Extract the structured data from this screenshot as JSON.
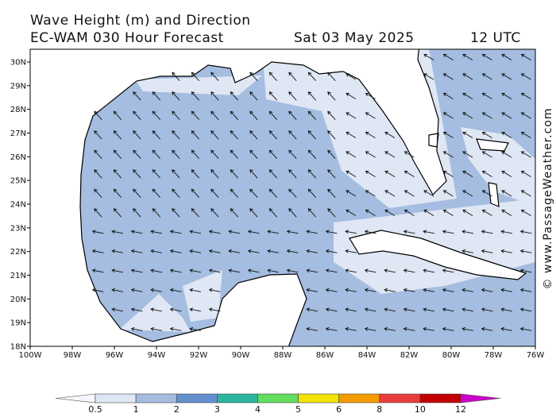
{
  "header": {
    "title": "Wave Height (m) and Direction",
    "subtitle": "EC-WAM 030 Hour Forecast",
    "date": "Sat 03 May 2025",
    "time": "12 UTC"
  },
  "map": {
    "lat_labels": [
      "30N",
      "29N",
      "28N",
      "27N",
      "26N",
      "25N",
      "24N",
      "23N",
      "22N",
      "21N",
      "20N",
      "19N",
      "18N"
    ],
    "lon_labels": [
      "100W",
      "98W",
      "96W",
      "94W",
      "92W",
      "90W",
      "88W",
      "86W",
      "84W",
      "82W",
      "80W",
      "78W",
      "76W"
    ]
  },
  "colorbar": {
    "labels": [
      "0.5",
      "1",
      "2",
      "3",
      "4",
      "5",
      "6",
      "8",
      "10",
      "12"
    ],
    "colors": [
      "#f4f6fb",
      "#dfe6f4",
      "#a4bde0",
      "#6490cf",
      "#2db5a0",
      "#63dd5e",
      "#f4e300",
      "#f49b00",
      "#e83c3c",
      "#c20000",
      "#cc00cc"
    ]
  },
  "credit": "© www.PassageWeather.com"
}
